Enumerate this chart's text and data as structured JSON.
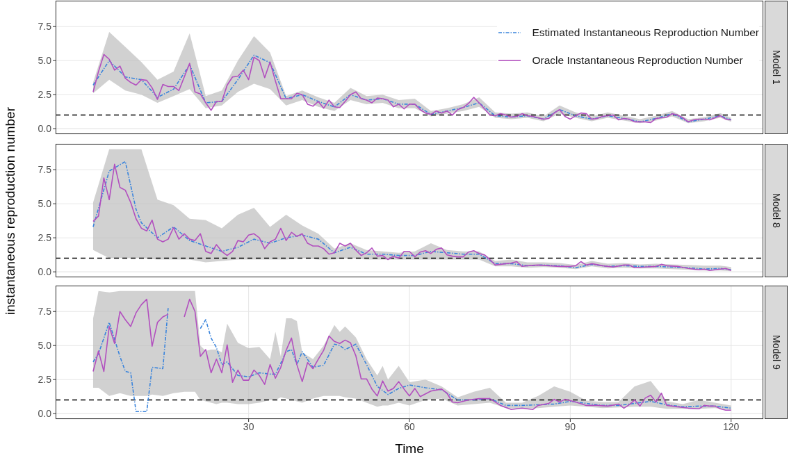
{
  "chart_data": [
    {
      "type": "line",
      "annotations": [
        "Model 1"
      ],
      "xlim": [
        -6,
        126
      ],
      "ylim": [
        -0.4,
        9.4
      ],
      "xticks": [
        30,
        60,
        90,
        120
      ],
      "yticks": [
        {
          "value": 0,
          "label": "0.0"
        },
        {
          "value": 2.5,
          "label": "2.5"
        },
        {
          "value": 5,
          "label": "5.0"
        },
        {
          "value": 7.5,
          "label": "7.5"
        }
      ],
      "grid": true,
      "legend": "top right",
      "tick_labels": "y",
      "ref_lines": [
        {
          "axis": "y",
          "value": 1,
          "color": "#000000",
          "line_style": "dashed"
        }
      ],
      "series": [
        {
          "name": "Estimated Instantaneous Reproduction Number",
          "color": "#3a84dc",
          "line_style": "dashed",
          "x": [
            1,
            4,
            7,
            10,
            13,
            16,
            19,
            22,
            25,
            28,
            31,
            34,
            37,
            40,
            43,
            46,
            49,
            52,
            55,
            58,
            61,
            64,
            67,
            70,
            73,
            76,
            79,
            82,
            85,
            88,
            91,
            94,
            97,
            100,
            103,
            106,
            109,
            112,
            115,
            118,
            120
          ],
          "values": [
            3.2,
            5.0,
            3.8,
            3.6,
            2.3,
            2.9,
            4.7,
            1.9,
            2.0,
            3.6,
            5.4,
            4.85,
            2.2,
            2.5,
            2.0,
            1.6,
            2.5,
            2.1,
            2.2,
            1.8,
            1.8,
            1.05,
            1.3,
            1.55,
            1.9,
            0.95,
            0.85,
            0.95,
            0.7,
            1.4,
            0.95,
            0.7,
            0.95,
            0.75,
            0.5,
            0.75,
            1.1,
            0.5,
            0.7,
            0.95,
            0.65
          ],
          "lower": [
            2.6,
            3.6,
            2.8,
            2.5,
            1.9,
            2.4,
            2.9,
            1.5,
            1.7,
            2.7,
            3.3,
            2.9,
            1.7,
            2.1,
            1.6,
            1.3,
            2.1,
            1.8,
            1.9,
            1.5,
            1.5,
            0.9,
            1.1,
            1.3,
            1.6,
            0.8,
            0.7,
            0.8,
            0.55,
            1.1,
            0.8,
            0.55,
            0.8,
            0.6,
            0.4,
            0.6,
            0.9,
            0.4,
            0.55,
            0.8,
            0.5
          ],
          "upper": [
            3.4,
            7.1,
            6.0,
            4.9,
            3.6,
            4.2,
            7.0,
            2.4,
            2.8,
            5.0,
            6.8,
            5.6,
            2.4,
            2.8,
            2.3,
            1.9,
            3.0,
            2.4,
            2.5,
            2.1,
            2.2,
            1.3,
            1.5,
            1.8,
            2.3,
            1.2,
            1.1,
            1.2,
            0.9,
            1.7,
            1.2,
            0.9,
            1.2,
            0.95,
            0.7,
            0.95,
            1.3,
            0.7,
            0.85,
            1.15,
            0.8
          ]
        },
        {
          "name": "Oracle Instantaneous Reproduction Number",
          "color": "#b24fbf",
          "line_style": "solid",
          "x": [
            1,
            2,
            3,
            4,
            5,
            6,
            7,
            8,
            9,
            10,
            11,
            12,
            13,
            14,
            15,
            16,
            17,
            18,
            19,
            20,
            21,
            22,
            23,
            24,
            25,
            26,
            27,
            28,
            29,
            30,
            31,
            32,
            33,
            34,
            35,
            36,
            37,
            38,
            39,
            40,
            41,
            42,
            43,
            44,
            45,
            46,
            47,
            48,
            49,
            50,
            51,
            52,
            53,
            54,
            55,
            56,
            57,
            58,
            59,
            60,
            61,
            62,
            63,
            64,
            65,
            66,
            67,
            68,
            69,
            70,
            71,
            72,
            73,
            74,
            75,
            76,
            77,
            78,
            79,
            80,
            81,
            82,
            83,
            84,
            85,
            86,
            87,
            88,
            89,
            90,
            91,
            92,
            93,
            94,
            95,
            96,
            97,
            98,
            99,
            100,
            101,
            102,
            103,
            104,
            105,
            106,
            107,
            108,
            109,
            110,
            111,
            112,
            113,
            114,
            115,
            116,
            117,
            118,
            119,
            120
          ],
          "values": [
            2.7,
            4.2,
            5.45,
            5.1,
            4.3,
            4.6,
            3.7,
            3.4,
            3.2,
            3.6,
            3.55,
            3.0,
            2.15,
            3.25,
            3.1,
            3.1,
            2.8,
            3.8,
            4.8,
            2.7,
            2.55,
            1.9,
            1.35,
            2.0,
            2.0,
            3.2,
            3.8,
            3.85,
            4.3,
            3.6,
            5.25,
            5.0,
            3.75,
            4.9,
            3.5,
            2.2,
            2.2,
            2.2,
            2.6,
            2.5,
            1.8,
            1.65,
            2.0,
            1.5,
            2.1,
            1.6,
            1.55,
            2.0,
            2.5,
            2.7,
            2.2,
            2.1,
            1.9,
            2.25,
            2.2,
            2.1,
            1.6,
            1.8,
            1.45,
            1.8,
            1.8,
            1.4,
            1.15,
            1.05,
            1.3,
            1.15,
            1.3,
            1.0,
            1.4,
            1.55,
            1.85,
            2.3,
            1.9,
            1.45,
            1.0,
            0.95,
            1.1,
            1.0,
            0.85,
            0.9,
            1.1,
            0.95,
            0.9,
            0.8,
            0.7,
            0.75,
            1.15,
            1.4,
            0.9,
            0.7,
            0.95,
            1.15,
            1.1,
            0.7,
            0.75,
            0.9,
            0.95,
            1.0,
            0.65,
            0.75,
            0.7,
            0.5,
            0.5,
            0.5,
            0.45,
            0.75,
            0.8,
            0.85,
            1.1,
            1.0,
            0.8,
            0.5,
            0.65,
            0.7,
            0.7,
            0.65,
            0.8,
            0.95,
            0.7,
            0.65
          ]
        }
      ]
    },
    {
      "type": "line",
      "annotations": [
        "Model 8"
      ],
      "ylabel": "instantaneous reproduction number",
      "xlim": [
        -6,
        126
      ],
      "ylim": [
        -0.4,
        9.4
      ],
      "xticks": [
        30,
        60,
        90,
        120
      ],
      "yticks": [
        {
          "value": 0,
          "label": "0.0"
        },
        {
          "value": 2.5,
          "label": "2.5"
        },
        {
          "value": 5,
          "label": "5.0"
        },
        {
          "value": 7.5,
          "label": "7.5"
        }
      ],
      "grid": true,
      "tick_labels": "y",
      "ref_lines": [
        {
          "axis": "y",
          "value": 1,
          "color": "#000000",
          "line_style": "dashed"
        }
      ],
      "series": [
        {
          "color": "#3a84dc",
          "line_style": "dashed",
          "x": [
            1,
            4,
            7,
            9,
            10,
            13,
            16,
            19,
            22,
            25,
            28,
            31,
            34,
            37,
            40,
            43,
            46,
            49,
            52,
            55,
            58,
            61,
            64,
            67,
            70,
            73,
            76,
            79,
            82,
            85,
            88,
            91,
            94,
            97,
            100,
            103,
            106,
            109,
            112,
            115,
            118,
            120
          ],
          "values": [
            3.3,
            7.4,
            8.1,
            4.6,
            3.6,
            2.5,
            3.3,
            2.3,
            1.9,
            1.5,
            1.8,
            2.4,
            2.1,
            2.5,
            2.7,
            2.4,
            1.4,
            1.8,
            1.3,
            1.3,
            1.2,
            1.2,
            1.5,
            1.4,
            1.3,
            1.3,
            0.6,
            0.6,
            0.45,
            0.5,
            0.45,
            0.3,
            0.55,
            0.4,
            0.45,
            0.4,
            0.4,
            0.35,
            0.3,
            0.2,
            0.25,
            0.15
          ],
          "lower": [
            1.6,
            1.0,
            1.0,
            1.0,
            1.0,
            0.9,
            0.9,
            0.9,
            0.7,
            0.8,
            0.9,
            0.9,
            0.9,
            0.9,
            1.0,
            0.9,
            0.9,
            1.0,
            0.9,
            0.9,
            0.9,
            0.9,
            0.9,
            0.9,
            0.9,
            0.9,
            0.4,
            0.4,
            0.3,
            0.35,
            0.3,
            0.2,
            0.4,
            0.25,
            0.3,
            0.25,
            0.25,
            0.2,
            0.15,
            0.1,
            0.1,
            0.05
          ],
          "upper": [
            5.1,
            9.0,
            9.0,
            9.0,
            9.0,
            5.3,
            4.9,
            3.9,
            3.8,
            3.2,
            4.2,
            4.7,
            3.3,
            4.2,
            3.4,
            2.8,
            1.7,
            2.1,
            1.6,
            1.5,
            1.4,
            1.5,
            2.1,
            1.6,
            1.5,
            1.5,
            0.8,
            0.9,
            0.7,
            0.7,
            0.65,
            0.5,
            0.8,
            0.6,
            0.65,
            0.55,
            0.6,
            0.55,
            0.5,
            0.45,
            0.45,
            0.35
          ]
        },
        {
          "color": "#b24fbf",
          "line_style": "solid",
          "x": [
            1,
            2,
            3,
            4,
            5,
            6,
            7,
            8,
            9,
            10,
            11,
            12,
            13,
            14,
            15,
            16,
            17,
            18,
            19,
            20,
            21,
            22,
            23,
            24,
            25,
            26,
            27,
            28,
            29,
            30,
            31,
            32,
            33,
            34,
            35,
            36,
            37,
            38,
            39,
            40,
            41,
            42,
            43,
            44,
            45,
            46,
            47,
            48,
            49,
            50,
            51,
            52,
            53,
            54,
            55,
            56,
            57,
            58,
            59,
            60,
            61,
            62,
            63,
            64,
            65,
            66,
            67,
            68,
            69,
            70,
            71,
            72,
            73,
            74,
            75,
            76,
            77,
            78,
            79,
            80,
            81,
            82,
            84,
            86,
            88,
            90,
            91,
            92,
            93,
            94,
            96,
            98,
            100,
            101,
            102,
            104,
            106,
            107,
            108,
            110,
            112,
            114,
            115,
            116,
            118,
            119,
            120
          ],
          "values": [
            3.7,
            4.1,
            6.9,
            5.3,
            7.9,
            6.2,
            6.0,
            5.1,
            3.9,
            3.2,
            3.0,
            3.8,
            2.4,
            2.2,
            2.4,
            3.25,
            2.4,
            2.8,
            2.4,
            2.3,
            2.8,
            1.5,
            1.35,
            2.0,
            1.5,
            1.2,
            1.5,
            2.3,
            2.2,
            2.7,
            2.8,
            2.5,
            1.7,
            2.2,
            2.4,
            3.2,
            2.3,
            2.9,
            2.6,
            2.8,
            2.1,
            1.9,
            1.9,
            1.7,
            1.3,
            1.4,
            2.1,
            1.9,
            2.1,
            1.6,
            1.2,
            1.4,
            1.75,
            1.15,
            1.2,
            0.9,
            1.15,
            1.0,
            1.5,
            1.5,
            1.1,
            1.45,
            1.55,
            1.35,
            1.65,
            1.75,
            1.25,
            1.15,
            1.1,
            1.1,
            1.45,
            1.55,
            1.35,
            1.25,
            0.9,
            0.5,
            0.55,
            0.6,
            0.65,
            0.75,
            0.4,
            0.45,
            0.5,
            0.45,
            0.4,
            0.4,
            0.45,
            0.75,
            0.5,
            0.6,
            0.45,
            0.35,
            0.5,
            0.5,
            0.3,
            0.35,
            0.4,
            0.55,
            0.45,
            0.4,
            0.25,
            0.15,
            0.2,
            0.1,
            0.2,
            0.25,
            0.1
          ]
        }
      ]
    },
    {
      "type": "line",
      "annotations": [
        "Model 9"
      ],
      "xlabel": "Time",
      "xlim": [
        -6,
        126
      ],
      "ylim": [
        -0.4,
        9.4
      ],
      "xticks": [
        30,
        60,
        90,
        120
      ],
      "yticks": [
        {
          "value": 0,
          "label": "0.0"
        },
        {
          "value": 2.5,
          "label": "2.5"
        },
        {
          "value": 5,
          "label": "5.0"
        },
        {
          "value": 7.5,
          "label": "7.5"
        }
      ],
      "grid": true,
      "ref_lines": [
        {
          "axis": "y",
          "value": 1,
          "color": "#000000",
          "line_style": "dashed"
        }
      ],
      "series": [
        {
          "color": "#3a84dc",
          "line_style": "dashed",
          "x": [
            1,
            2,
            4,
            6,
            7,
            8,
            9,
            11,
            12,
            14,
            15,
            16,
            18,
            20,
            21,
            22,
            23,
            24,
            25,
            26,
            28,
            30,
            32,
            34,
            35,
            36,
            37,
            38,
            39,
            40,
            42,
            44,
            46,
            47,
            48,
            50,
            52,
            54,
            55,
            56,
            58,
            60,
            63,
            66,
            69,
            72,
            75,
            78,
            81,
            84,
            87,
            90,
            93,
            96,
            99,
            102,
            105,
            108,
            111,
            114,
            117,
            120
          ],
          "values": [
            3.8,
            4.4,
            6.7,
            4.2,
            3.1,
            3.0,
            0.15,
            0.15,
            3.4,
            3.3,
            7.8,
            null,
            null,
            null,
            6.25,
            6.9,
            5.55,
            4.85,
            3.6,
            3.8,
            2.8,
            2.7,
            3.0,
            2.9,
            2.9,
            3.7,
            4.55,
            4.7,
            3.6,
            4.55,
            3.4,
            3.55,
            5.1,
            5.0,
            4.7,
            5.1,
            3.6,
            2.0,
            1.7,
            1.4,
            1.85,
            2.1,
            1.9,
            1.75,
            1.0,
            1.0,
            1.1,
            0.6,
            0.6,
            0.65,
            0.7,
            0.9,
            0.75,
            0.6,
            0.6,
            0.75,
            0.9,
            0.65,
            0.5,
            0.55,
            0.55,
            0.4
          ],
          "lower": [
            1.9,
            1.9,
            1.3,
            1.5,
            1.4,
            1.3,
            1.3,
            1.3,
            1.4,
            1.3,
            1.4,
            1.5,
            1.6,
            1.6,
            1.0,
            0.9,
            0.8,
            0.7,
            0.8,
            0.8,
            0.7,
            0.7,
            0.8,
            1.0,
            1.0,
            1.2,
            1.1,
            1.0,
            0.9,
            0.8,
            1.1,
            1.3,
            1.3,
            1.3,
            1.2,
            1.1,
            0.8,
            0.5,
            0.6,
            0.6,
            0.8,
            0.6,
            1.0,
            1.1,
            0.6,
            0.7,
            0.8,
            0.4,
            0.35,
            0.4,
            0.5,
            0.6,
            0.5,
            0.4,
            0.45,
            0.5,
            0.5,
            0.35,
            0.35,
            0.35,
            0.4,
            0.25
          ],
          "upper": [
            7.0,
            9.0,
            8.9,
            9.0,
            9.0,
            9.0,
            9.0,
            9.0,
            9.0,
            9.0,
            9.0,
            9.0,
            9.0,
            9.0,
            5.0,
            4.6,
            4.7,
            4.7,
            4.5,
            6.6,
            5.2,
            4.8,
            4.9,
            4.0,
            6.0,
            4.2,
            7.0,
            7.0,
            6.8,
            4.5,
            4.0,
            5.0,
            6.5,
            6.0,
            6.4,
            5.6,
            4.0,
            2.8,
            3.5,
            2.5,
            3.5,
            2.3,
            2.5,
            2.0,
            1.2,
            1.6,
            1.9,
            0.8,
            0.8,
            1.3,
            2.0,
            1.6,
            0.95,
            0.85,
            0.85,
            2.0,
            2.4,
            0.9,
            0.7,
            1.0,
            0.8,
            0.6
          ]
        },
        {
          "color": "#b24fbf",
          "line_style": "solid",
          "x": [
            1,
            2,
            3,
            4,
            5,
            6,
            7,
            8,
            9,
            10,
            11,
            12,
            13,
            14,
            15,
            16,
            17,
            18,
            19,
            20,
            21,
            22,
            23,
            24,
            25,
            26,
            27,
            28,
            29,
            30,
            31,
            32,
            33,
            34,
            35,
            36,
            37,
            38,
            39,
            40,
            41,
            42,
            43,
            44,
            45,
            46,
            47,
            48,
            49,
            50,
            51,
            52,
            53,
            54,
            55,
            56,
            57,
            58,
            59,
            60,
            61,
            62,
            64,
            66,
            67,
            68,
            69,
            71,
            73,
            75,
            77,
            79,
            81,
            83,
            84,
            86,
            87,
            88,
            89,
            91,
            93,
            95,
            97,
            99,
            100,
            101,
            102,
            103,
            104,
            105,
            106,
            107,
            108,
            110,
            112,
            114,
            115,
            116,
            117,
            118,
            119,
            120
          ],
          "values": [
            3.1,
            4.6,
            3.1,
            6.4,
            5.15,
            7.5,
            6.9,
            6.4,
            7.4,
            8.0,
            8.4,
            4.95,
            6.7,
            7.1,
            7.3,
            null,
            null,
            7.1,
            8.4,
            7.5,
            4.2,
            4.7,
            3.0,
            4.0,
            3.0,
            5.05,
            2.3,
            3.2,
            2.45,
            2.45,
            3.2,
            2.8,
            2.15,
            3.6,
            2.6,
            3.4,
            4.65,
            5.55,
            3.6,
            2.35,
            3.75,
            3.3,
            4.0,
            4.65,
            5.7,
            5.3,
            5.15,
            5.4,
            5.2,
            4.25,
            2.55,
            2.55,
            1.8,
            1.3,
            2.4,
            1.65,
            1.85,
            2.35,
            1.8,
            1.3,
            1.85,
            1.25,
            1.65,
            1.8,
            1.5,
            0.85,
            0.8,
            1.0,
            1.1,
            1.1,
            0.6,
            0.3,
            0.4,
            0.3,
            0.6,
            0.75,
            1.05,
            0.85,
            1.05,
            0.85,
            0.6,
            0.6,
            0.55,
            0.7,
            0.4,
            0.65,
            1.0,
            0.55,
            1.15,
            1.35,
            0.85,
            1.5,
            0.6,
            0.5,
            0.4,
            0.35,
            0.6,
            0.55,
            0.55,
            0.35,
            0.25,
            0.25
          ]
        }
      ]
    }
  ]
}
